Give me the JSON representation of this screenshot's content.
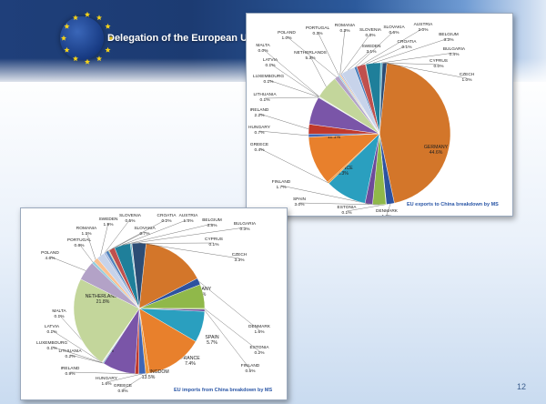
{
  "header": {
    "title": "Delegation of the European Union"
  },
  "page_number": "12",
  "colors": {
    "banner": "#1f3f7a",
    "caption": "#2a56a6"
  },
  "chart_data": [
    {
      "type": "pie",
      "title": "EU exports to China breakdown by MS",
      "slices": [
        {
          "label": "GERMANY",
          "value": 44.6,
          "pct": "44.6%",
          "color": "#d3762a"
        },
        {
          "label": "DENMARK",
          "value": 1.8,
          "pct": "1.8%",
          "color": "#2d52a0"
        },
        {
          "label": "ESTONIA",
          "value": 0.1,
          "pct": "0.1%",
          "color": "#8fb33c"
        },
        {
          "label": "SPAIN",
          "value": 3.0,
          "pct": "3.0%",
          "color": "#90b84a"
        },
        {
          "label": "FINLAND",
          "value": 1.7,
          "pct": "1.7%",
          "color": "#6e4a9a"
        },
        {
          "label": "FRANCE",
          "value": 9.3,
          "pct": "9.3%",
          "color": "#2a9fbf"
        },
        {
          "label": "GREECE",
          "value": 0.4,
          "pct": "0.4%",
          "color": "#f09a3c"
        },
        {
          "label": "UNITED KINGDOM",
          "value": 11.1,
          "pct": "11.1%",
          "color": "#e8802c"
        },
        {
          "label": "HUNGARY",
          "value": 0.7,
          "pct": "0.7%",
          "color": "#3e66b5"
        },
        {
          "label": "IRELAND",
          "value": 2.2,
          "pct": "2.2%",
          "color": "#c0392b"
        },
        {
          "label": "ITALY",
          "value": 6.3,
          "pct": "6.3%",
          "color": "#7a55a8"
        },
        {
          "label": "LITHUANIA",
          "value": 0.1,
          "pct": "0.1%",
          "color": "#3aa6c4"
        },
        {
          "label": "LUXEMBOURG",
          "value": 0.1,
          "pct": "0.1%",
          "color": "#f3a65a"
        },
        {
          "label": "LATVIA",
          "value": 0.1,
          "pct": "0.1%",
          "color": "#95b3d7"
        },
        {
          "label": "MALTA",
          "value": 0.0,
          "pct": "0.0%",
          "color": "#d99694"
        },
        {
          "label": "NETHERLANDS",
          "value": 5.3,
          "pct": "5.3%",
          "color": "#c3d69b"
        },
        {
          "label": "POLAND",
          "value": 1.0,
          "pct": "1.0%",
          "color": "#b3a2c7"
        },
        {
          "label": "PORTUGAL",
          "value": 0.3,
          "pct": "0.3%",
          "color": "#93cddd"
        },
        {
          "label": "ROMANIA",
          "value": 0.3,
          "pct": "0.3%",
          "color": "#fac090"
        },
        {
          "label": "SLOVENIA",
          "value": 0.3,
          "pct": "0.3%",
          "color": "#a6b9de"
        },
        {
          "label": "SWEDEN",
          "value": 3.1,
          "pct": "3.1%",
          "color": "#c7d3ea"
        },
        {
          "label": "SLOVAKIA",
          "value": 0.6,
          "pct": "0.6%",
          "color": "#4f81bd"
        },
        {
          "label": "AUSTRIA",
          "value": 2.0,
          "pct": "2.0%",
          "color": "#c0504d"
        },
        {
          "label": "CROATIA",
          "value": 0.1,
          "pct": "0.1%",
          "color": "#9bbb59"
        },
        {
          "label": "BELGIUM",
          "value": 3.3,
          "pct": "3.3%",
          "color": "#1f7f9a"
        },
        {
          "label": "BULGARIA",
          "value": 0.4,
          "pct": "0.4%",
          "color": "#4bacc6"
        },
        {
          "label": "CYPRUS",
          "value": 0.0,
          "pct": "0.0%",
          "color": "#f79646"
        },
        {
          "label": "CZECH",
          "value": 1.0,
          "pct": "1.0%",
          "color": "#2c4d75"
        }
      ]
    },
    {
      "type": "pie",
      "title": "EU imports from China breakdown by MS",
      "slices": [
        {
          "label": "GERMANY",
          "value": 15.1,
          "pct": "15.1%",
          "color": "#d3762a"
        },
        {
          "label": "DENMARK",
          "value": 1.6,
          "pct": "1.6%",
          "color": "#2d52a0"
        },
        {
          "label": "SPAIN",
          "value": 5.7,
          "pct": "5.7%",
          "color": "#90b84a"
        },
        {
          "label": "ESTONIA",
          "value": 0.2,
          "pct": "0.2%",
          "color": "#8fb33c"
        },
        {
          "label": "FINLAND",
          "value": 0.5,
          "pct": "0.5%",
          "color": "#6e4a9a"
        },
        {
          "label": "FRANCE",
          "value": 7.4,
          "pct": "7.4%",
          "color": "#2a9fbf"
        },
        {
          "label": "UNITED KINGDOM",
          "value": 13.5,
          "pct": "13.5%",
          "color": "#e8802c"
        },
        {
          "label": "GREECE",
          "value": 0.9,
          "pct": "0.9%",
          "color": "#f09a3c"
        },
        {
          "label": "HUNGARY",
          "value": 1.6,
          "pct": "1.6%",
          "color": "#3e66b5"
        },
        {
          "label": "IRELAND",
          "value": 0.9,
          "pct": "0.9%",
          "color": "#c0392b"
        },
        {
          "label": "ITALY",
          "value": 7.8,
          "pct": "7.8%",
          "color": "#7a55a8"
        },
        {
          "label": "LITHUANIA",
          "value": 0.2,
          "pct": "0.2%",
          "color": "#3aa6c4"
        },
        {
          "label": "LUXEMBOURG",
          "value": 0.1,
          "pct": "0.1%",
          "color": "#f3a65a"
        },
        {
          "label": "LATVIA",
          "value": 0.1,
          "pct": "0.1%",
          "color": "#95b3d7"
        },
        {
          "label": "MALTA",
          "value": 0.1,
          "pct": "0.1%",
          "color": "#d99694"
        },
        {
          "label": "NETHERLANDS",
          "value": 21.8,
          "pct": "21.8%",
          "color": "#c3d69b"
        },
        {
          "label": "POLAND",
          "value": 4.6,
          "pct": "4.6%",
          "color": "#b3a2c7"
        },
        {
          "label": "PORTUGAL",
          "value": 0.6,
          "pct": "0.6%",
          "color": "#93cddd"
        },
        {
          "label": "ROMANIA",
          "value": 1.1,
          "pct": "1.1%",
          "color": "#fac090"
        },
        {
          "label": "SWEDEN",
          "value": 1.9,
          "pct": "1.9%",
          "color": "#c7d3ea"
        },
        {
          "label": "SLOVENIA",
          "value": 0.5,
          "pct": "0.5%",
          "color": "#a6b9de"
        },
        {
          "label": "SLOVAKIA",
          "value": 0.7,
          "pct": "0.7%",
          "color": "#4f81bd"
        },
        {
          "label": "CROATIA",
          "value": 0.2,
          "pct": "0.2%",
          "color": "#9bbb59"
        },
        {
          "label": "AUSTRIA",
          "value": 1.4,
          "pct": "1.4%",
          "color": "#c0504d"
        },
        {
          "label": "BELGIUM",
          "value": 3.8,
          "pct": "3.8%",
          "color": "#1f7f9a"
        },
        {
          "label": "BULGARIA",
          "value": 0.3,
          "pct": "0.3%",
          "color": "#4bacc6"
        },
        {
          "label": "CYPRUS",
          "value": 0.1,
          "pct": "0.1%",
          "color": "#f79646"
        },
        {
          "label": "CZECH",
          "value": 3.3,
          "pct": "3.3%",
          "color": "#2c4d75"
        }
      ]
    }
  ]
}
